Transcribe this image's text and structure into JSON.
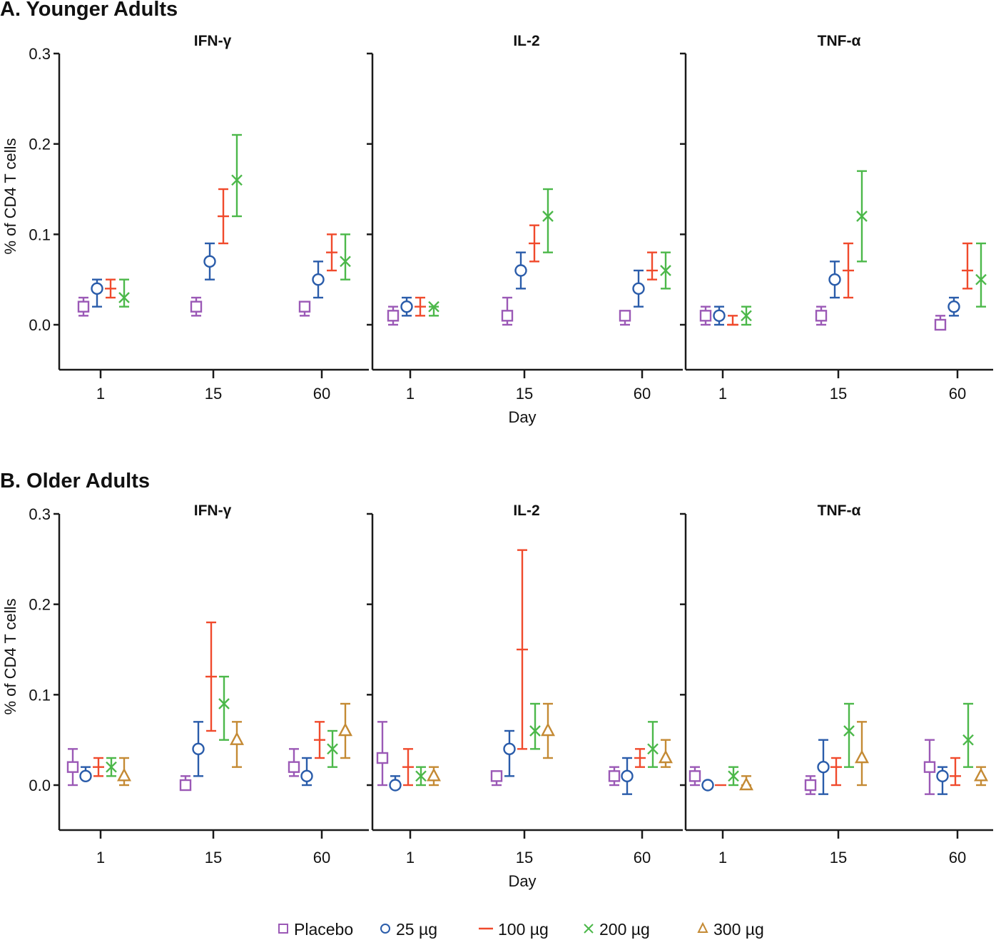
{
  "chart_data": [
    {
      "type": "scatter",
      "variant": "error-bar",
      "section": "A. Younger Adults",
      "ylabel": "% of CD4 T cells",
      "xlabel": "Day",
      "ylim": [
        -0.05,
        0.3
      ],
      "yticks": [
        "0.0",
        "0.1",
        "0.2",
        "0.3"
      ],
      "categories": [
        "1",
        "15",
        "60"
      ],
      "series_names": [
        "Placebo",
        "25 µg",
        "100 µg",
        "200 µg"
      ],
      "panels": [
        {
          "title": "IFN-γ",
          "series": [
            {
              "name": "Placebo",
              "values": [
                0.02,
                0.02,
                0.02
              ],
              "lower": [
                0.01,
                0.01,
                0.01
              ],
              "upper": [
                0.03,
                0.03,
                0.02
              ]
            },
            {
              "name": "25 µg",
              "values": [
                0.04,
                0.07,
                0.05
              ],
              "lower": [
                0.02,
                0.05,
                0.03
              ],
              "upper": [
                0.05,
                0.09,
                0.07
              ]
            },
            {
              "name": "100 µg",
              "values": [
                0.04,
                0.12,
                0.08
              ],
              "lower": [
                0.03,
                0.09,
                0.06
              ],
              "upper": [
                0.05,
                0.15,
                0.1
              ]
            },
            {
              "name": "200 µg",
              "values": [
                0.03,
                0.16,
                0.07
              ],
              "lower": [
                0.02,
                0.12,
                0.05
              ],
              "upper": [
                0.05,
                0.21,
                0.1
              ]
            }
          ]
        },
        {
          "title": "IL-2",
          "series": [
            {
              "name": "Placebo",
              "values": [
                0.01,
                0.01,
                0.01
              ],
              "lower": [
                0.0,
                0.0,
                0.0
              ],
              "upper": [
                0.02,
                0.03,
                0.01
              ]
            },
            {
              "name": "25 µg",
              "values": [
                0.02,
                0.06,
                0.04
              ],
              "lower": [
                0.01,
                0.04,
                0.02
              ],
              "upper": [
                0.03,
                0.08,
                0.06
              ]
            },
            {
              "name": "100 µg",
              "values": [
                0.02,
                0.09,
                0.06
              ],
              "lower": [
                0.01,
                0.07,
                0.05
              ],
              "upper": [
                0.03,
                0.11,
                0.08
              ]
            },
            {
              "name": "200 µg",
              "values": [
                0.02,
                0.12,
                0.06
              ],
              "lower": [
                0.01,
                0.08,
                0.04
              ],
              "upper": [
                0.02,
                0.15,
                0.08
              ]
            }
          ]
        },
        {
          "title": "TNF-α",
          "series": [
            {
              "name": "Placebo",
              "values": [
                0.01,
                0.01,
                0.0
              ],
              "lower": [
                0.0,
                0.0,
                0.0
              ],
              "upper": [
                0.02,
                0.02,
                0.01
              ]
            },
            {
              "name": "25 µg",
              "values": [
                0.01,
                0.05,
                0.02
              ],
              "lower": [
                0.0,
                0.03,
                0.01
              ],
              "upper": [
                0.02,
                0.07,
                0.03
              ]
            },
            {
              "name": "100 µg",
              "values": [
                0.0,
                0.06,
                0.06
              ],
              "lower": [
                0.0,
                0.03,
                0.04
              ],
              "upper": [
                0.01,
                0.09,
                0.09
              ]
            },
            {
              "name": "200 µg",
              "values": [
                0.01,
                0.12,
                0.05
              ],
              "lower": [
                0.0,
                0.07,
                0.02
              ],
              "upper": [
                0.02,
                0.17,
                0.09
              ]
            }
          ]
        }
      ]
    },
    {
      "type": "scatter",
      "variant": "error-bar",
      "section": "B. Older Adults",
      "ylabel": "% of CD4 T cells",
      "xlabel": "Day",
      "ylim": [
        -0.05,
        0.3
      ],
      "yticks": [
        "0.0",
        "0.1",
        "0.2",
        "0.3"
      ],
      "categories": [
        "1",
        "15",
        "60"
      ],
      "series_names": [
        "Placebo",
        "25 µg",
        "100 µg",
        "200 µg",
        "300 µg"
      ],
      "panels": [
        {
          "title": "IFN-γ",
          "series": [
            {
              "name": "Placebo",
              "values": [
                0.02,
                0.0,
                0.02
              ],
              "lower": [
                0.0,
                0.0,
                0.01
              ],
              "upper": [
                0.04,
                0.01,
                0.04
              ]
            },
            {
              "name": "25 µg",
              "values": [
                0.01,
                0.04,
                0.01
              ],
              "lower": [
                0.01,
                0.01,
                0.0
              ],
              "upper": [
                0.02,
                0.07,
                0.03
              ]
            },
            {
              "name": "100 µg",
              "values": [
                0.02,
                0.12,
                0.05
              ],
              "lower": [
                0.01,
                0.06,
                0.03
              ],
              "upper": [
                0.03,
                0.18,
                0.07
              ]
            },
            {
              "name": "200 µg",
              "values": [
                0.02,
                0.09,
                0.04
              ],
              "lower": [
                0.01,
                0.05,
                0.02
              ],
              "upper": [
                0.03,
                0.12,
                0.06
              ]
            },
            {
              "name": "300 µg",
              "values": [
                0.01,
                0.05,
                0.06
              ],
              "lower": [
                0.0,
                0.02,
                0.03
              ],
              "upper": [
                0.03,
                0.07,
                0.09
              ]
            }
          ]
        },
        {
          "title": "IL-2",
          "series": [
            {
              "name": "Placebo",
              "values": [
                0.03,
                0.01,
                0.01
              ],
              "lower": [
                0.0,
                0.0,
                0.0
              ],
              "upper": [
                0.07,
                0.01,
                0.02
              ]
            },
            {
              "name": "25 µg",
              "values": [
                0.0,
                0.04,
                0.01
              ],
              "lower": [
                0.0,
                0.01,
                -0.01
              ],
              "upper": [
                0.01,
                0.06,
                0.03
              ]
            },
            {
              "name": "100 µg",
              "values": [
                0.02,
                0.15,
                0.03
              ],
              "lower": [
                0.0,
                0.04,
                0.02
              ],
              "upper": [
                0.04,
                0.26,
                0.04
              ]
            },
            {
              "name": "200 µg",
              "values": [
                0.01,
                0.06,
                0.04
              ],
              "lower": [
                0.0,
                0.04,
                0.02
              ],
              "upper": [
                0.02,
                0.09,
                0.07
              ]
            },
            {
              "name": "300 µg",
              "values": [
                0.01,
                0.06,
                0.03
              ],
              "lower": [
                0.0,
                0.03,
                0.02
              ],
              "upper": [
                0.02,
                0.09,
                0.05
              ]
            }
          ]
        },
        {
          "title": "TNF-α",
          "series": [
            {
              "name": "Placebo",
              "values": [
                0.01,
                0.0,
                0.02
              ],
              "lower": [
                0.0,
                -0.01,
                -0.01
              ],
              "upper": [
                0.02,
                0.01,
                0.05
              ]
            },
            {
              "name": "25 µg",
              "values": [
                0.0,
                0.02,
                0.01
              ],
              "lower": [
                0.0,
                -0.01,
                -0.01
              ],
              "upper": [
                0.0,
                0.05,
                0.02
              ]
            },
            {
              "name": "100 µg",
              "values": [
                0.0,
                0.02,
                0.01
              ],
              "lower": [
                0.0,
                0.0,
                0.0
              ],
              "upper": [
                0.0,
                0.03,
                0.03
              ]
            },
            {
              "name": "200 µg",
              "values": [
                0.01,
                0.06,
                0.05
              ],
              "lower": [
                0.0,
                0.02,
                0.02
              ],
              "upper": [
                0.02,
                0.09,
                0.09
              ]
            },
            {
              "name": "300 µg",
              "values": [
                0.0,
                0.03,
                0.01
              ],
              "lower": [
                0.0,
                0.0,
                0.0
              ],
              "upper": [
                0.01,
                0.07,
                0.02
              ]
            }
          ]
        }
      ]
    }
  ],
  "legend": {
    "placement": "bottom",
    "items": [
      {
        "label": "Placebo",
        "marker": "square",
        "color": "#9b59b6"
      },
      {
        "label": "25 µg",
        "marker": "circle",
        "color": "#2a5caa"
      },
      {
        "label": "100 µg",
        "marker": "dash",
        "color": "#f04a2c"
      },
      {
        "label": "200 µg",
        "marker": "x",
        "color": "#4cb84a"
      },
      {
        "label": "300 µg",
        "marker": "triangle",
        "color": "#c48a34"
      }
    ]
  }
}
